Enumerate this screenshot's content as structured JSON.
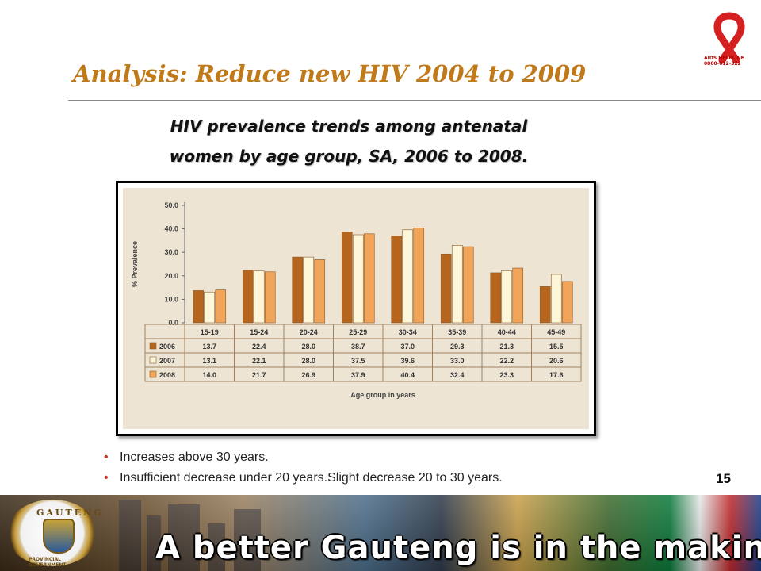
{
  "logo": {
    "name": "aids-helpline-ribbon",
    "label": "AIDS HELPLINE",
    "phone": "0800-012-322",
    "color": "#d42020"
  },
  "slide": {
    "title": "Analysis: Reduce new HIV 2004 to 2009",
    "subtitle_line1": "HIV prevalence trends among antenatal",
    "subtitle_line2": "women by age group, SA, 2006 to 2008.",
    "bullets": [
      "Increases above 30 years.",
      "Insufficient decrease under 20 years.Slight decrease 20 to 30 years."
    ],
    "page_number": "15"
  },
  "footer": {
    "seal_name": "GAUTENG",
    "seal_sub": "PROVINCIAL GOVERNMENT",
    "slogan": "A better Gauteng is in the making"
  },
  "chart_data": {
    "type": "bar",
    "title": "",
    "xlabel": "Age group in years",
    "ylabel": "% Prevalence",
    "ylim": [
      0,
      50
    ],
    "yticks": [
      "0.0",
      "10.0",
      "20.0",
      "30.0",
      "40.0",
      "50.0"
    ],
    "categories": [
      "15-19",
      "15-24",
      "20-24",
      "25-29",
      "30-34",
      "35-39",
      "40-44",
      "45-49"
    ],
    "series": [
      {
        "name": "2006",
        "color": "#b5651d",
        "values": [
          13.7,
          22.4,
          28.0,
          38.7,
          37.0,
          29.3,
          21.3,
          15.5
        ],
        "labels": [
          "13.7",
          "22.4",
          "28.0",
          "38.7",
          "37.0",
          "29.3",
          "21.3",
          "15.5"
        ]
      },
      {
        "name": "2007",
        "color": "#fdf6d8",
        "values": [
          13.1,
          22.1,
          28.0,
          37.5,
          39.6,
          33.0,
          22.2,
          20.6
        ],
        "labels": [
          "13.1",
          "22.1",
          "28.0",
          "37.5",
          "39.6",
          "33.0",
          "22.2",
          "20.6"
        ]
      },
      {
        "name": "2008",
        "color": "#f0a55a",
        "values": [
          14.0,
          21.7,
          26.9,
          37.9,
          40.4,
          32.4,
          23.3,
          17.6
        ],
        "labels": [
          "14.0",
          "21.7",
          "26.9",
          "37.9",
          "40.4",
          "32.4",
          "23.3",
          "17.6"
        ]
      }
    ],
    "grid": false,
    "legend": "table-left"
  }
}
